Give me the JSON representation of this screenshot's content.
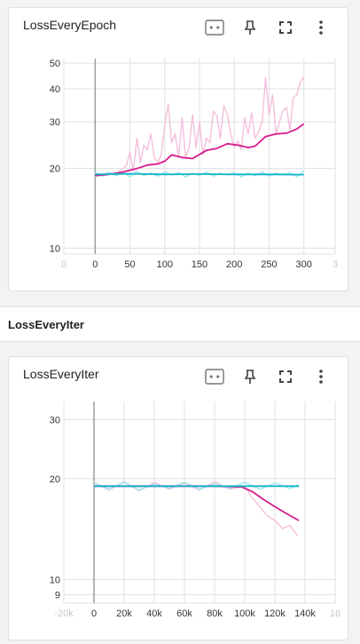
{
  "section_header": {
    "title": "LossEveryIter"
  },
  "toolbar_icons": [
    "fit-domain-icon",
    "pin-icon",
    "fullscreen-icon",
    "more-vert-icon"
  ],
  "colors": {
    "smoothed_pink": "#d81b8c",
    "raw_pink": "#f4bfdc",
    "smoothed_cyan": "#12b5cb",
    "raw_cyan": "#9fe6ee",
    "grid": "#e0e0e0"
  },
  "charts": [
    {
      "title": "LossEveryEpoch"
    },
    {
      "title": "LossEveryIter"
    }
  ],
  "chart_data": [
    {
      "type": "line",
      "title": "LossEveryEpoch",
      "y_scale": "log",
      "x_ticks": [
        "0",
        "0",
        "50",
        "100",
        "150",
        "200",
        "250",
        "300",
        "3"
      ],
      "x_tick_values": [
        -45,
        0,
        50,
        100,
        150,
        200,
        250,
        300,
        345
      ],
      "y_ticks": [
        "50",
        "40",
        "30",
        "20",
        "10"
      ],
      "y_tick_values": [
        50,
        40,
        30,
        20,
        10
      ],
      "xlim": [
        -45,
        345
      ],
      "ylim": [
        9.5,
        52
      ],
      "grid": true,
      "series": [
        {
          "role": "smoothed",
          "color": "#d81b8c",
          "x": [
            0,
            20,
            40,
            60,
            75,
            90,
            100,
            110,
            125,
            140,
            160,
            175,
            190,
            205,
            220,
            230,
            245,
            260,
            275,
            290,
            300
          ],
          "y": [
            18.8,
            19.0,
            19.4,
            20.0,
            20.6,
            20.8,
            21.3,
            22.5,
            22.0,
            21.8,
            23.4,
            23.8,
            24.8,
            24.5,
            24.0,
            24.3,
            26.4,
            27.0,
            27.2,
            28.2,
            29.5
          ]
        },
        {
          "role": "raw",
          "color": "#f4bfdc",
          "x": [
            0,
            15,
            30,
            45,
            50,
            55,
            60,
            65,
            70,
            75,
            80,
            85,
            90,
            95,
            100,
            105,
            110,
            115,
            120,
            125,
            130,
            135,
            140,
            145,
            150,
            155,
            160,
            165,
            170,
            175,
            180,
            185,
            190,
            195,
            200,
            205,
            210,
            215,
            220,
            225,
            230,
            235,
            240,
            245,
            250,
            255,
            260,
            265,
            270,
            275,
            280,
            285,
            290,
            295,
            300
          ],
          "y": [
            18.6,
            19.2,
            19.0,
            20.5,
            23.0,
            19.5,
            26.0,
            21.0,
            24.5,
            23.5,
            27.0,
            22.0,
            21.0,
            22.5,
            29.0,
            35.0,
            25.0,
            27.0,
            22.0,
            31.0,
            22.0,
            24.0,
            32.0,
            24.0,
            30.0,
            22.5,
            26.0,
            25.0,
            33.0,
            31.5,
            26.0,
            34.5,
            32.0,
            27.0,
            24.0,
            25.5,
            23.5,
            31.0,
            27.0,
            32.5,
            26.0,
            27.5,
            30.0,
            44.0,
            32.0,
            38.0,
            27.0,
            30.0,
            33.0,
            34.0,
            28.0,
            37.0,
            38.0,
            42.5,
            44.5
          ]
        },
        {
          "role": "smoothed",
          "color": "#12b5cb",
          "x": [
            0,
            50,
            100,
            150,
            200,
            250,
            300
          ],
          "y": [
            19.0,
            19.1,
            19.0,
            19.05,
            19.0,
            19.0,
            18.95
          ]
        },
        {
          "role": "raw",
          "color": "#9fe6ee",
          "x": [
            0,
            10,
            20,
            30,
            40,
            50,
            60,
            70,
            80,
            90,
            100,
            110,
            120,
            130,
            140,
            150,
            160,
            170,
            180,
            190,
            200,
            210,
            220,
            230,
            240,
            250,
            260,
            270,
            280,
            290,
            300
          ],
          "y": [
            19.3,
            18.7,
            19.4,
            18.8,
            19.3,
            18.6,
            19.5,
            18.8,
            19.2,
            18.7,
            19.4,
            18.9,
            19.3,
            18.6,
            19.2,
            18.8,
            19.4,
            18.7,
            19.2,
            18.9,
            19.3,
            18.6,
            19.2,
            18.8,
            19.4,
            18.7,
            19.2,
            18.9,
            19.3,
            18.6,
            19.6
          ]
        }
      ]
    },
    {
      "type": "line",
      "title": "LossEveryIter",
      "y_scale": "log",
      "x_ticks": [
        "-20k",
        "0",
        "20k",
        "40k",
        "60k",
        "80k",
        "100k",
        "120k",
        "140k",
        "16"
      ],
      "x_tick_values": [
        -20000,
        0,
        20000,
        40000,
        60000,
        80000,
        100000,
        120000,
        140000,
        160000
      ],
      "y_ticks": [
        "30",
        "20",
        "10",
        "9"
      ],
      "y_tick_values": [
        30,
        20,
        10,
        9
      ],
      "xlim": [
        -20000,
        160000
      ],
      "ylim": [
        8.5,
        34
      ],
      "grid": true,
      "series": [
        {
          "role": "raw",
          "color": "#f4bfdc",
          "x": [
            0,
            10000,
            20000,
            30000,
            40000,
            50000,
            60000,
            70000,
            80000,
            90000,
            100000,
            105000,
            110000,
            115000,
            120000,
            125000,
            130000,
            135000
          ],
          "y": [
            19.5,
            18.5,
            19.6,
            18.4,
            19.5,
            18.6,
            19.4,
            18.5,
            19.6,
            18.6,
            19.0,
            17.5,
            16.5,
            15.5,
            15.0,
            14.2,
            14.5,
            13.5
          ]
        },
        {
          "role": "smoothed",
          "color": "#d81b8c",
          "x": [
            0,
            20000,
            40000,
            60000,
            80000,
            98000,
            105000,
            112000,
            120000,
            128000,
            136000
          ],
          "y": [
            19.0,
            19.0,
            19.0,
            19.0,
            19.0,
            18.9,
            18.3,
            17.4,
            16.5,
            15.7,
            15.0
          ]
        },
        {
          "role": "raw",
          "color": "#9fe6ee",
          "x": [
            0,
            10000,
            20000,
            30000,
            40000,
            50000,
            60000,
            70000,
            80000,
            90000,
            100000,
            110000,
            120000,
            130000,
            136000
          ],
          "y": [
            19.4,
            18.6,
            19.5,
            18.5,
            19.3,
            18.7,
            19.5,
            18.6,
            19.3,
            18.7,
            19.5,
            18.6,
            19.4,
            18.7,
            19.2
          ]
        },
        {
          "role": "smoothed",
          "color": "#12b5cb",
          "x": [
            0,
            40000,
            80000,
            120000,
            136000
          ],
          "y": [
            19.0,
            19.0,
            19.0,
            19.0,
            19.0
          ]
        }
      ]
    }
  ]
}
